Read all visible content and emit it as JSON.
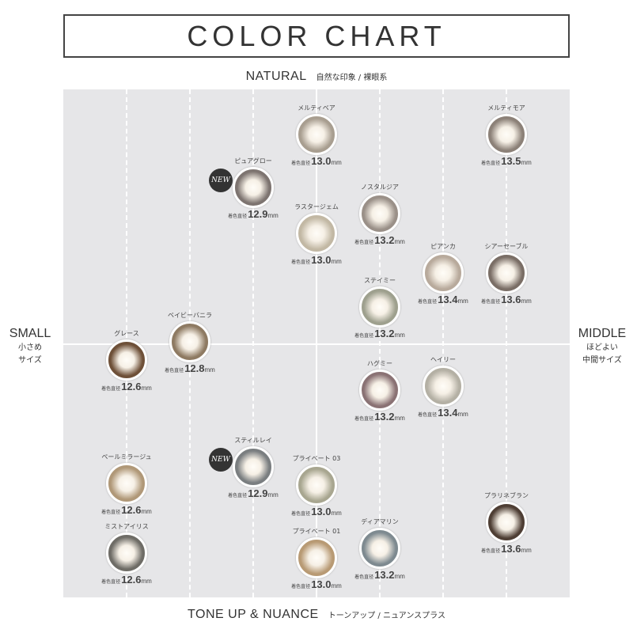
{
  "title": "COLOR CHART",
  "axes": {
    "top": {
      "en": "NATURAL",
      "ja": "自然な印象 / 裸眼系"
    },
    "bottom": {
      "en": "TONE UP & NUANCE",
      "ja": "トーンアップ / ニュアンスプラス"
    },
    "left": {
      "en": "SMALL",
      "ja1": "小さめ",
      "ja2": "サイズ"
    },
    "right": {
      "en": "MIDDLE",
      "ja1": "ほどよい",
      "ja2": "中間サイズ"
    }
  },
  "diameter_label": "着色直径",
  "unit": "mm",
  "new_badge": "NEW",
  "lenses": [
    {
      "name": "メルティベア",
      "diameter": "13.0",
      "color": "#a89e90",
      "new": false
    },
    {
      "name": "メルティモア",
      "diameter": "13.5",
      "color": "#8c8178",
      "new": false
    },
    {
      "name": "ピュアグロー",
      "diameter": "12.9",
      "color": "#7d7470",
      "new": true
    },
    {
      "name": "ラスタージェム",
      "diameter": "13.0",
      "color": "#c2b8a4",
      "new": false
    },
    {
      "name": "ノスタルジア",
      "diameter": "13.2",
      "color": "#9a9088",
      "new": false
    },
    {
      "name": "ピアンカ",
      "diameter": "13.4",
      "color": "#b8aa9c",
      "new": false
    },
    {
      "name": "シアーセーブル",
      "diameter": "13.6",
      "color": "#7a6e66",
      "new": false
    },
    {
      "name": "ステイミー",
      "diameter": "13.2",
      "color": "#9ea08e",
      "new": false
    },
    {
      "name": "ベイビーバニラ",
      "diameter": "12.8",
      "color": "#8e7a62",
      "new": false
    },
    {
      "name": "グレース",
      "diameter": "12.6",
      "color": "#6e5038",
      "new": false
    },
    {
      "name": "ハグミー",
      "diameter": "13.2",
      "color": "#8a7274",
      "new": false
    },
    {
      "name": "ヘイリー",
      "diameter": "13.4",
      "color": "#b4b0a4",
      "new": false
    },
    {
      "name": "ペールミラージュ",
      "diameter": "12.6",
      "color": "#b09878",
      "new": false
    },
    {
      "name": "ミストアイリス",
      "diameter": "12.6",
      "color": "#6e6c66",
      "new": false
    },
    {
      "name": "スティルレイ",
      "diameter": "12.9",
      "color": "#7a7e80",
      "new": true
    },
    {
      "name": "プライベート 03",
      "diameter": "13.0",
      "color": "#a8a690",
      "new": false
    },
    {
      "name": "プライベート 01",
      "diameter": "13.0",
      "color": "#b89a74",
      "new": false
    },
    {
      "name": "ディアマリン",
      "diameter": "13.2",
      "color": "#7e8a90",
      "new": false
    },
    {
      "name": "プラリネブラン",
      "diameter": "13.6",
      "color": "#4e3e34",
      "new": false
    }
  ]
}
